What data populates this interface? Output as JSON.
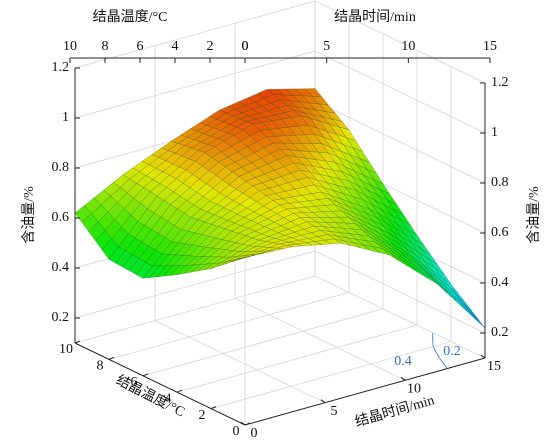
{
  "chart_data": {
    "type": "surface3d",
    "x_label": "结晶时间/min",
    "y_label": "结晶温度/°C",
    "z_label": "含油量/%",
    "x": [
      0,
      3,
      6,
      9,
      12,
      15
    ],
    "y": [
      0,
      2,
      4,
      6,
      8,
      10
    ],
    "z": [
      [
        0.77,
        0.76,
        0.72,
        0.62,
        0.45,
        0.22
      ],
      [
        0.66,
        0.72,
        0.74,
        0.68,
        0.52,
        0.33
      ],
      [
        0.57,
        0.7,
        0.76,
        0.74,
        0.62,
        0.46
      ],
      [
        0.49,
        0.68,
        0.79,
        0.82,
        0.74,
        0.6
      ],
      [
        0.5,
        0.7,
        0.82,
        0.88,
        0.86,
        0.75
      ],
      [
        0.62,
        0.72,
        0.8,
        0.87,
        0.9,
        0.85
      ]
    ],
    "xlim": [
      0,
      15
    ],
    "ylim": [
      0,
      10
    ],
    "zlim": [
      0.1,
      1.2
    ],
    "xticks": [
      0,
      5,
      10,
      15
    ],
    "yticks": [
      0,
      2,
      4,
      6,
      8,
      10
    ],
    "zticks": [
      0.2,
      0.4,
      0.6,
      0.8,
      1,
      1.2
    ],
    "contour_levels": [
      0.4,
      0.2
    ],
    "grid": true
  }
}
